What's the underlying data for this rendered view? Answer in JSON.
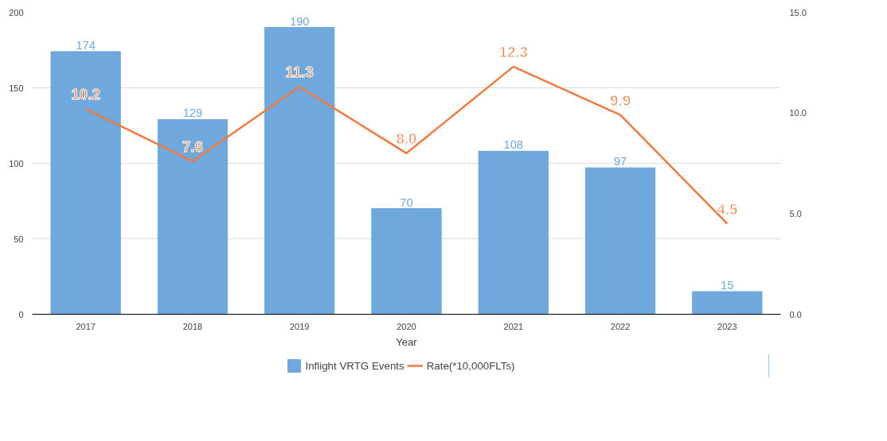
{
  "chart_data": {
    "type": "bar",
    "xlabel": "Year",
    "categories": [
      "2017",
      "2018",
      "2019",
      "2020",
      "2021",
      "2022",
      "2023"
    ],
    "ylim": [
      0,
      200
    ],
    "yticks": [
      0,
      50,
      100,
      150,
      200
    ],
    "y2lim": [
      0,
      15
    ],
    "y2ticks": [
      {
        "value": 0,
        "label": "0.0"
      },
      {
        "value": 5,
        "label": "5.0"
      },
      {
        "value": 10,
        "label": "10.0"
      },
      {
        "value": 15,
        "label": "15.0"
      }
    ],
    "grid": "y",
    "legend": "bottom",
    "series": [
      {
        "name": "Inflight VRTG Events",
        "color": "#6fa8dc",
        "values": [
          174,
          129,
          190,
          70,
          108,
          97,
          15
        ],
        "value_labels": [
          "174",
          "129",
          "190",
          "70",
          "108",
          "97",
          "15"
        ]
      },
      {
        "name": "Rate(*10,000FLTs)",
        "type": "line",
        "axis": "y2",
        "color": "#f07b3f",
        "values": [
          10.2,
          7.6,
          11.3,
          8.0,
          12.3,
          9.9,
          4.5
        ],
        "value_labels": [
          "10.2",
          "7.6",
          "11.3",
          "8.0",
          "12.3",
          "9.9",
          "4.5"
        ]
      }
    ]
  }
}
